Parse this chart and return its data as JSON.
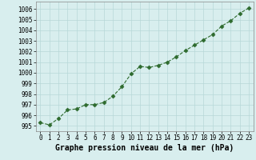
{
  "x": [
    0,
    1,
    2,
    3,
    4,
    5,
    6,
    7,
    8,
    9,
    10,
    11,
    12,
    13,
    14,
    15,
    16,
    17,
    18,
    19,
    20,
    21,
    22,
    23
  ],
  "y": [
    995.3,
    995.1,
    995.7,
    996.5,
    996.6,
    997.0,
    997.0,
    997.2,
    997.8,
    998.7,
    999.9,
    1000.6,
    1000.5,
    1000.7,
    1001.0,
    1001.5,
    1002.1,
    1002.6,
    1003.1,
    1003.6,
    1004.4,
    1004.9,
    1005.6,
    1006.1
  ],
  "line_color": "#2d6a2d",
  "marker": "D",
  "marker_size": 2.5,
  "bg_color": "#d8eeee",
  "grid_color": "#b8d8d8",
  "xlabel": "Graphe pression niveau de la mer (hPa)",
  "xlabel_fontsize": 7,
  "ylabel_ticks": [
    995,
    996,
    997,
    998,
    999,
    1000,
    1001,
    1002,
    1003,
    1004,
    1005,
    1006
  ],
  "ylim": [
    994.5,
    1006.7
  ],
  "xlim": [
    -0.5,
    23.5
  ],
  "xticks": [
    0,
    1,
    2,
    3,
    4,
    5,
    6,
    7,
    8,
    9,
    10,
    11,
    12,
    13,
    14,
    15,
    16,
    17,
    18,
    19,
    20,
    21,
    22,
    23
  ],
  "tick_fontsize": 5.5,
  "spine_color": "#888888",
  "linewidth": 0.8
}
